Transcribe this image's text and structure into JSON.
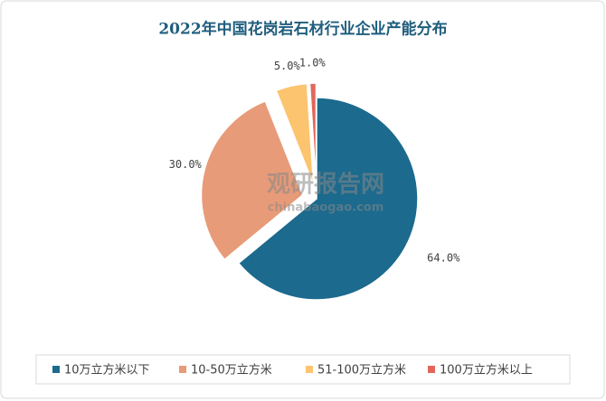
{
  "chart_data": {
    "type": "pie",
    "title": "2022年中国花岗岩石材行业企业产能分布",
    "categories": [
      "10万立方米以下",
      "10-50万立方米",
      "51-100万立方米",
      "100万立方米以上"
    ],
    "values": [
      64,
      30,
      5,
      1
    ],
    "value_labels": [
      "64.0%",
      "30.0%",
      "5.0%",
      "1.0%"
    ],
    "colors": [
      "#1c6a8e",
      "#e89b78",
      "#fcc46e",
      "#e2675a"
    ],
    "legend": "bottom",
    "annotations": [
      "观研报告网",
      "chinabaogao.com"
    ]
  }
}
